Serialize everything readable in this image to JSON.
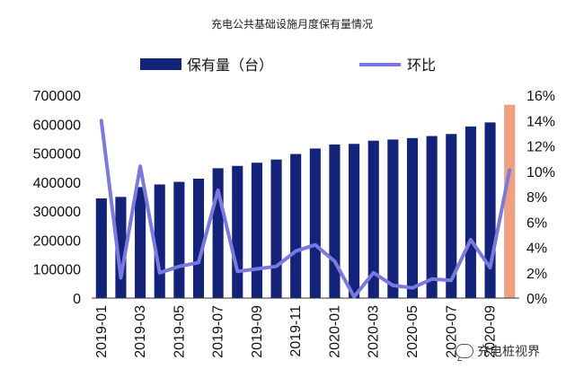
{
  "title": "充电公共基础设施月度保有量情况",
  "watermark": "充电桩视界",
  "chart_data": {
    "type": "bar",
    "title": "充电公共基础设施月度保有量情况",
    "categories": [
      "2019-01",
      "2019-02",
      "2019-03",
      "2019-04",
      "2019-05",
      "2019-06",
      "2019-07",
      "2019-08",
      "2019-09",
      "2019-10",
      "2019-11",
      "2019-12",
      "2020-01",
      "2020-02",
      "2020-03",
      "2020-04",
      "2020-05",
      "2020-06",
      "2020-07",
      "2020-08",
      "2020-09",
      "2020-10"
    ],
    "tick_labels": [
      "2019-01",
      "2019-03",
      "2019-05",
      "2019-07",
      "2019-09",
      "2019-11",
      "2020-01",
      "2020-03",
      "2020-05",
      "2020-07",
      "2020-09"
    ],
    "series": [
      {
        "name": "保有量（台）",
        "kind": "bar",
        "axis": "left",
        "color": "#14237a",
        "values": [
          344000,
          349000,
          383000,
          392000,
          401000,
          412000,
          448000,
          456000,
          467000,
          478000,
          497000,
          516000,
          530000,
          532000,
          543000,
          547000,
          552000,
          559000,
          566000,
          592000,
          606000,
          667000
        ],
        "highlight_last_color": "#f0a07c"
      },
      {
        "name": "环比",
        "kind": "line",
        "axis": "right",
        "color": "#7b79e0",
        "values": [
          14.0,
          1.6,
          10.4,
          2.0,
          2.5,
          2.8,
          8.5,
          2.1,
          2.3,
          2.5,
          3.7,
          4.2,
          2.9,
          0.1,
          2.0,
          1.0,
          0.8,
          1.5,
          1.4,
          4.6,
          2.4,
          10.1
        ]
      }
    ],
    "y_left": {
      "min": 0,
      "max": 700000,
      "step": 100000
    },
    "y_right": {
      "min": 0,
      "max": 16,
      "step": 2,
      "format": "percent"
    },
    "legend_position": "top",
    "grid": false
  }
}
